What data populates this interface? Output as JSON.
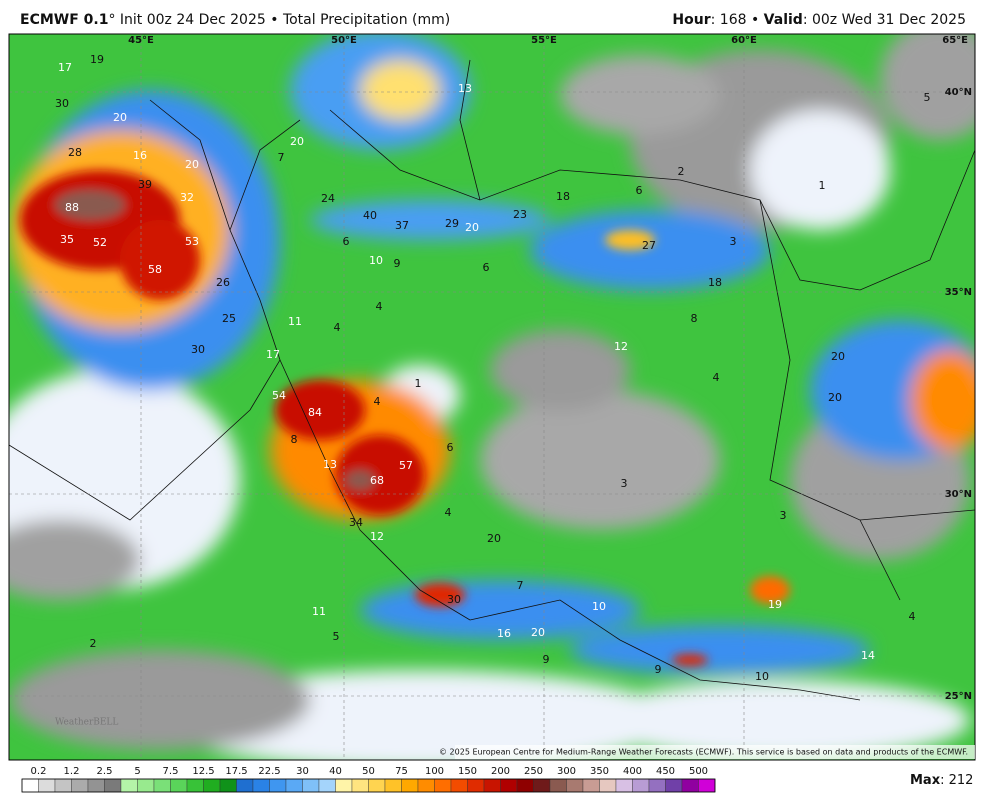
{
  "header": {
    "model": "ECMWF 0.1",
    "init_text": "° Init 00z 24 Dec 2025 • Total Precipitation (mm)",
    "hour_label": "Hour",
    "hour_text": ": 168 • ",
    "valid_label": "Valid",
    "valid_text": ": 00z Wed 31 Dec 2025"
  },
  "map": {
    "lon_labels": [
      "45°E",
      "50°E",
      "55°E",
      "60°E",
      "65°E"
    ],
    "lat_labels": [
      "40°N",
      "35°N",
      "30°N",
      "25°N"
    ],
    "values": [
      17,
      19,
      30,
      20,
      28,
      16,
      20,
      39,
      32,
      88,
      35,
      52,
      53,
      58,
      26,
      25,
      30,
      17,
      11,
      4,
      54,
      84,
      57,
      68,
      13,
      34,
      12,
      20,
      4,
      30,
      16,
      20,
      9,
      10,
      19,
      14,
      10,
      9,
      4,
      20,
      20,
      4,
      12,
      18,
      8,
      27,
      3,
      6,
      18,
      2,
      1,
      23,
      20,
      29,
      37,
      40,
      24,
      10,
      9,
      6,
      6,
      20,
      7,
      13,
      4,
      1,
      4,
      6,
      3,
      8,
      7,
      5,
      2,
      11,
      3,
      5
    ],
    "copyright": "© 2025 European Centre for Medium-Range Weather Forecasts (ECMWF). This service is based on data and products of the ECMWF.",
    "watermark": "WeatherBELL"
  },
  "legend": {
    "labels": [
      "0.2",
      "1.2",
      "2.5",
      "5",
      "7.5",
      "12.5",
      "17.5",
      "22.5",
      "30",
      "40",
      "50",
      "75",
      "100",
      "150",
      "200",
      "250",
      "300",
      "350",
      "400",
      "450",
      "500"
    ],
    "max_label": "Max",
    "max_text": ": 212"
  }
}
